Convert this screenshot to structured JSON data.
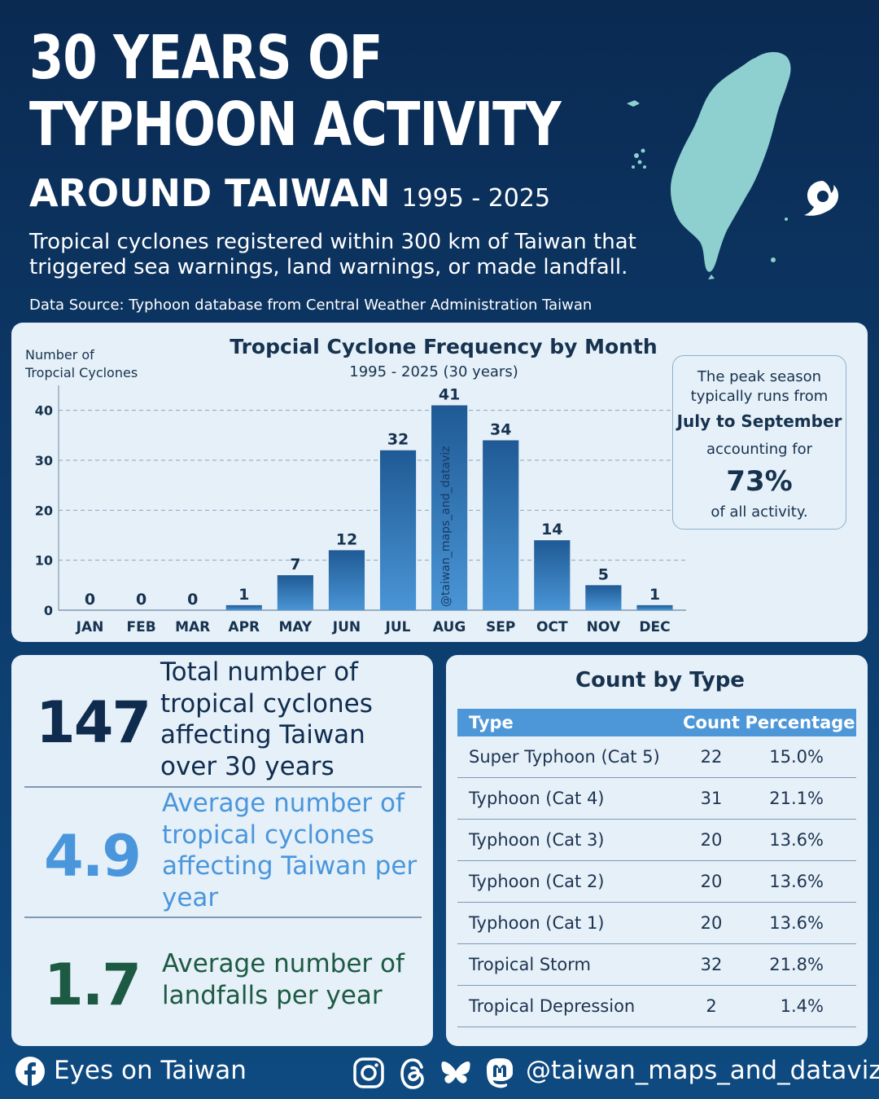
{
  "header": {
    "title_line1": "30 YEARS OF",
    "title_line2": "TYPHOON ACTIVITY",
    "title_line3": "AROUND TAIWAN",
    "years": "1995 - 2025",
    "description": "Tropical cyclones registered within 300 km of Taiwan that triggered sea warnings, land warnings, or made landfall.",
    "source": "Data Source: Typhoon database from Central Weather Administration Taiwan"
  },
  "callout": {
    "line1": "The peak season typically runs from",
    "line2": "July to September",
    "line3": "accounting for",
    "value": "73%",
    "line5": "of all activity."
  },
  "chart_data": {
    "type": "bar",
    "title": "Tropcial Cyclone Frequency by Month",
    "subtitle": "1995 - 2025 (30 years)",
    "ylabel": "Number of Tropcial Cyclones",
    "xlabel": "",
    "categories": [
      "JAN",
      "FEB",
      "MAR",
      "APR",
      "MAY",
      "JUN",
      "JUL",
      "AUG",
      "SEP",
      "OCT",
      "NOV",
      "DEC"
    ],
    "values": [
      0,
      0,
      0,
      1,
      7,
      12,
      32,
      41,
      34,
      14,
      5,
      1
    ],
    "ylim": [
      0,
      45
    ],
    "yticks": [
      0,
      10,
      20,
      30,
      40
    ],
    "grid": true,
    "watermark": "@taiwan_maps_and_dataviz",
    "colors": {
      "bar_top": "#1f5a95",
      "bar_bottom": "#4a95d6",
      "label": "#16324f",
      "grid": "#8aa4bf"
    }
  },
  "stats": [
    {
      "value": "147",
      "text": "Total number of tropical cyclones affecting Taiwan over 30 years",
      "color": "#0f2c4f"
    },
    {
      "value": "4.9",
      "text": "Average number of tropical cyclones affecting Taiwan per year",
      "color": "#4a96dc"
    },
    {
      "value": "1.7",
      "text": "Average number of landfalls per year",
      "color": "#1d5a43"
    }
  ],
  "types": {
    "title": "Count by Type",
    "headers": [
      "Type",
      "Count",
      "Percentage"
    ],
    "rows": [
      [
        "Super Typhoon (Cat 5)",
        "22",
        "15.0%"
      ],
      [
        "Typhoon (Cat 4)",
        "31",
        "21.1%"
      ],
      [
        "Typhoon (Cat 3)",
        "20",
        "13.6%"
      ],
      [
        "Typhoon (Cat 2)",
        "20",
        "13.6%"
      ],
      [
        "Typhoon (Cat 1)",
        "20",
        "13.6%"
      ],
      [
        "Tropical Storm",
        "32",
        "21.8%"
      ],
      [
        "Tropical Depression",
        "2",
        "1.4%"
      ]
    ]
  },
  "footer": {
    "left": "Eyes on Taiwan",
    "handle": "@taiwan_maps_and_dataviz",
    "icons": [
      "facebook-icon",
      "instagram-icon",
      "threads-icon",
      "bluesky-icon",
      "mastodon-icon"
    ]
  }
}
